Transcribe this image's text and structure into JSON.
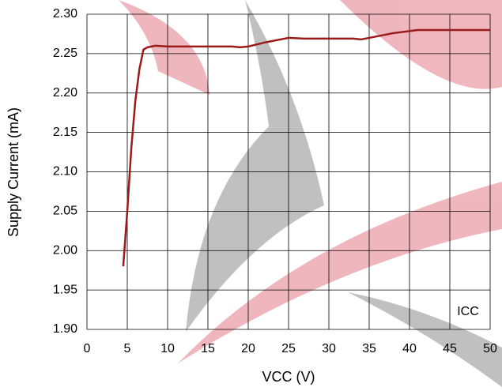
{
  "chart_data": {
    "type": "line",
    "x_label": "VCC (V)",
    "y_label": "Supply Current (mA)",
    "annotation": "ICC",
    "xlim": [
      0,
      50
    ],
    "xticks": [
      0,
      5,
      10,
      15,
      20,
      25,
      30,
      35,
      40,
      45,
      50
    ],
    "ylim": [
      1.9,
      2.3
    ],
    "yticks": [
      {
        "value": 1.9,
        "label": "1.90"
      },
      {
        "value": 1.95,
        "label": "1.95"
      },
      {
        "value": 2.0,
        "label": "2.00"
      },
      {
        "value": 2.05,
        "label": "2.05"
      },
      {
        "value": 2.1,
        "label": "2.10"
      },
      {
        "value": 2.15,
        "label": "2.15"
      },
      {
        "value": 2.2,
        "label": "2.20"
      },
      {
        "value": 2.25,
        "label": "2.25"
      },
      {
        "value": 2.3,
        "label": "2.30"
      }
    ],
    "grid": true,
    "series": [
      {
        "color": "#9b1b1b",
        "x": [
          4.5,
          5,
          5.5,
          6,
          6.5,
          7,
          7.5,
          8.5,
          10,
          15,
          18,
          19,
          20,
          22,
          25,
          27,
          30,
          33,
          34,
          35,
          38,
          41,
          45,
          50
        ],
        "values": [
          1.98,
          2.05,
          2.13,
          2.19,
          2.23,
          2.255,
          2.258,
          2.26,
          2.259,
          2.259,
          2.259,
          2.258,
          2.259,
          2.264,
          2.27,
          2.269,
          2.269,
          2.269,
          2.268,
          2.27,
          2.276,
          2.28,
          2.28,
          2.28
        ]
      }
    ]
  }
}
